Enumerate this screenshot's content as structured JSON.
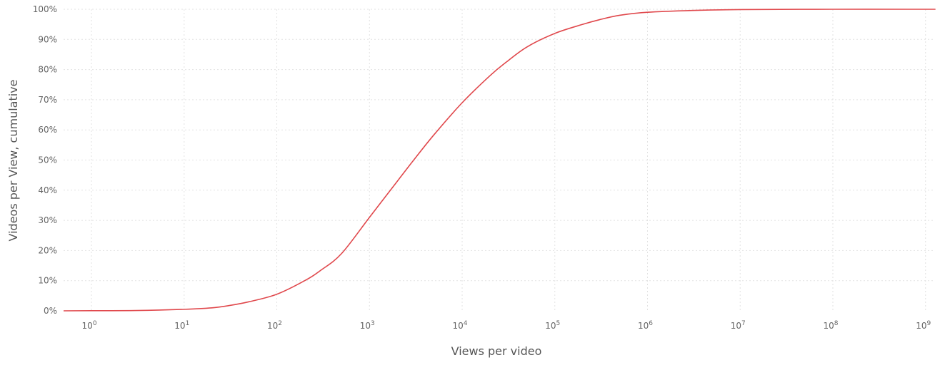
{
  "chart_data": {
    "type": "line",
    "title": "",
    "xlabel": "Views per video",
    "ylabel": "Videos per View, cumulative",
    "x_scale": "log10",
    "xlim": [
      0.5,
      1200000000.0
    ],
    "ylim": [
      0,
      100
    ],
    "grid": true,
    "legend": "none",
    "x_ticks": [
      {
        "value": 1,
        "base": "10",
        "exp": "0"
      },
      {
        "value": 10,
        "base": "10",
        "exp": "1"
      },
      {
        "value": 100,
        "base": "10",
        "exp": "2"
      },
      {
        "value": 1000,
        "base": "10",
        "exp": "3"
      },
      {
        "value": 10000,
        "base": "10",
        "exp": "4"
      },
      {
        "value": 100000,
        "base": "10",
        "exp": "5"
      },
      {
        "value": 1000000,
        "base": "10",
        "exp": "6"
      },
      {
        "value": 10000000,
        "base": "10",
        "exp": "7"
      },
      {
        "value": 100000000,
        "base": "10",
        "exp": "8"
      },
      {
        "value": 1000000000,
        "base": "10",
        "exp": "9"
      }
    ],
    "y_ticks": [
      {
        "value": 0,
        "label": "0%"
      },
      {
        "value": 10,
        "label": "10%"
      },
      {
        "value": 20,
        "label": "20%"
      },
      {
        "value": 30,
        "label": "30%"
      },
      {
        "value": 40,
        "label": "40%"
      },
      {
        "value": 50,
        "label": "50%"
      },
      {
        "value": 60,
        "label": "60%"
      },
      {
        "value": 70,
        "label": "70%"
      },
      {
        "value": 80,
        "label": "80%"
      },
      {
        "value": 90,
        "label": "90%"
      },
      {
        "value": 100,
        "label": "100%"
      }
    ],
    "series": [
      {
        "color": "#e0484c",
        "points": [
          [
            0.5,
            0
          ],
          [
            1,
            0.05
          ],
          [
            3,
            0.1
          ],
          [
            10,
            0.5
          ],
          [
            20,
            1
          ],
          [
            30,
            1.7
          ],
          [
            50,
            3
          ],
          [
            100,
            5.5
          ],
          [
            200,
            10
          ],
          [
            300,
            13.5
          ],
          [
            500,
            19
          ],
          [
            1000,
            31
          ],
          [
            2000,
            43
          ],
          [
            3000,
            50
          ],
          [
            5000,
            58.5
          ],
          [
            10000,
            69
          ],
          [
            20000,
            78
          ],
          [
            30000,
            82.5
          ],
          [
            50000,
            87.5
          ],
          [
            100000,
            92
          ],
          [
            200000,
            95
          ],
          [
            300000,
            96.5
          ],
          [
            500000,
            98
          ],
          [
            1000000,
            99
          ],
          [
            3000000,
            99.6
          ],
          [
            10000000,
            99.9
          ],
          [
            100000000,
            100
          ],
          [
            1000000000,
            100
          ],
          [
            1200000000,
            100
          ]
        ]
      }
    ]
  }
}
